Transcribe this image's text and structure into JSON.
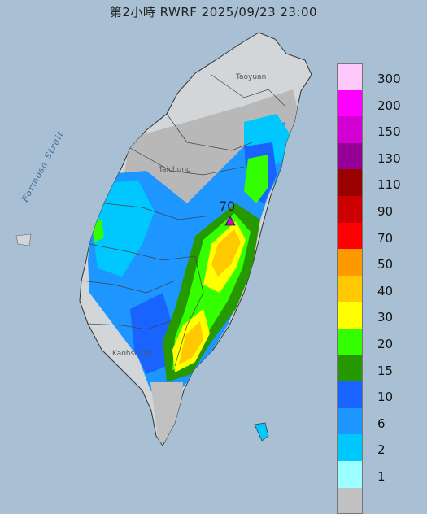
{
  "title": "第2小時  RWRF 2025/09/23 23:00",
  "sea_label": "Formosa Strait",
  "peak": {
    "value": "70",
    "marker": "triangle-marker"
  },
  "place_labels": [
    "Taoyuan",
    "Taichung",
    "Kaohsiung"
  ],
  "legend": {
    "items": [
      {
        "label": "300",
        "color": "#ffc8fa"
      },
      {
        "label": "200",
        "color": "#ff00ff"
      },
      {
        "label": "150",
        "color": "#d200d2"
      },
      {
        "label": "130",
        "color": "#960096"
      },
      {
        "label": "110",
        "color": "#9b0000"
      },
      {
        "label": "90",
        "color": "#cc0000"
      },
      {
        "label": "70",
        "color": "#ff0000"
      },
      {
        "label": "50",
        "color": "#ff9900"
      },
      {
        "label": "40",
        "color": "#ffc800"
      },
      {
        "label": "30",
        "color": "#ffff00"
      },
      {
        "label": "20",
        "color": "#33ff00"
      },
      {
        "label": "15",
        "color": "#279900"
      },
      {
        "label": "10",
        "color": "#1964ff"
      },
      {
        "label": "6",
        "color": "#1e96ff"
      },
      {
        "label": "2",
        "color": "#00c8ff"
      },
      {
        "label": "1",
        "color": "#9bffff"
      },
      {
        "label": "",
        "color": "#c1c1c1"
      }
    ]
  }
}
